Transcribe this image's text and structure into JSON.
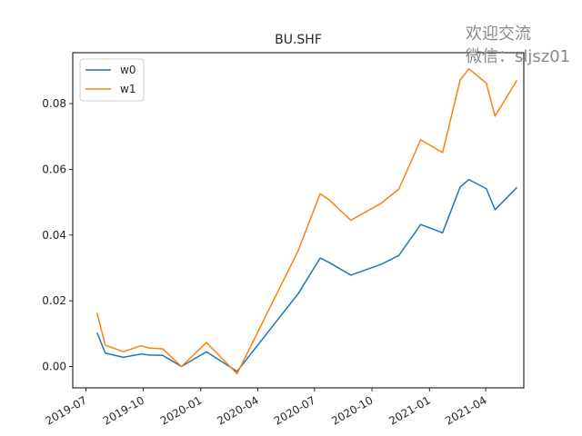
{
  "chart_data": {
    "type": "line",
    "title": "BU.SHF",
    "xlabel": "",
    "ylabel": "",
    "xlim": [
      "2019-06-10",
      "2021-06-01"
    ],
    "ylim": [
      -0.0065,
      0.0955
    ],
    "x_ticks": [
      "2019-07-01",
      "2019-10-01",
      "2020-01-01",
      "2020-04-01",
      "2020-07-01",
      "2020-10-01",
      "2021-01-01",
      "2021-04-01"
    ],
    "x_tick_labels": [
      "2019-07",
      "2019-10",
      "2020-01",
      "2020-04",
      "2020-07",
      "2020-10",
      "2021-01",
      "2021-04"
    ],
    "y_ticks": [
      0.0,
      0.02,
      0.04,
      0.06,
      0.08
    ],
    "y_tick_labels": [
      "0.00",
      "0.02",
      "0.04",
      "0.06",
      "0.08"
    ],
    "grid": false,
    "legend_position": "top-left",
    "x": [
      "2019-07-19",
      "2019-08-01",
      "2019-08-30",
      "2019-09-27",
      "2019-10-11",
      "2019-11-01",
      "2019-12-01",
      "2020-01-10",
      "2020-02-28",
      "2020-06-05",
      "2020-07-10",
      "2020-07-24",
      "2020-08-28",
      "2020-10-16",
      "2020-11-13",
      "2020-12-18",
      "2021-01-22",
      "2021-02-19",
      "2021-03-05",
      "2021-04-02",
      "2021-04-16",
      "2021-05-21"
    ],
    "series": [
      {
        "name": "w0",
        "color": "#1f77b4",
        "values": [
          0.0103,
          0.0041,
          0.0028,
          0.0038,
          0.0035,
          0.0034,
          0.0,
          0.0045,
          -0.0015,
          0.0222,
          0.033,
          0.0317,
          0.0278,
          0.0311,
          0.0338,
          0.0432,
          0.0407,
          0.0546,
          0.0569,
          0.0541,
          0.0477,
          0.0545
        ]
      },
      {
        "name": "w1",
        "color": "#ff7f0e",
        "values": [
          0.0163,
          0.0065,
          0.0045,
          0.0063,
          0.0056,
          0.0054,
          0.0,
          0.0073,
          -0.0022,
          0.0353,
          0.0526,
          0.0508,
          0.0445,
          0.0497,
          0.054,
          0.069,
          0.0651,
          0.0871,
          0.0906,
          0.0862,
          0.0762,
          0.0871
        ]
      }
    ]
  },
  "watermark": {
    "line1": "欢迎交流",
    "line2": "微信：sljsz01"
  }
}
